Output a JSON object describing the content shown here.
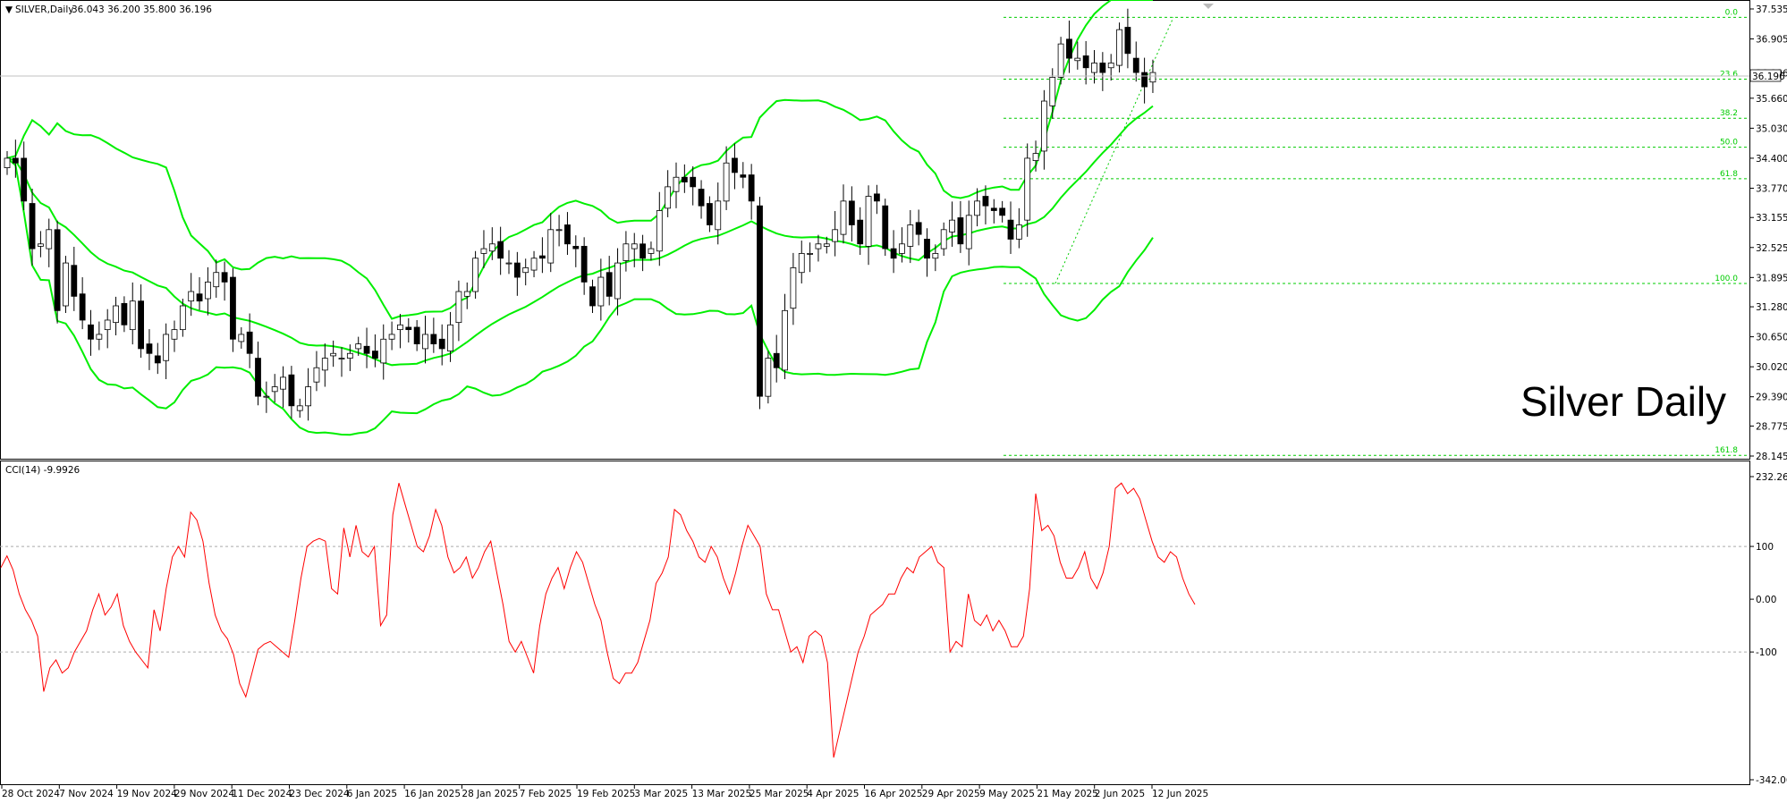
{
  "window": {
    "symbol_header": "SILVER,Daily",
    "ohlc_header": "36.043 36.200 35.800 36.196",
    "current_price_label": "36.196",
    "watermark": "Silver Daily",
    "cci_header": "CCI(14) -9.9926"
  },
  "colors": {
    "candle_body_bull": "#ffffff",
    "candle_body_bear": "#000000",
    "candle_outline": "#000000",
    "bollinger": "#00ee00",
    "fibonacci": "#00cc00",
    "cci_line": "#ff0000",
    "grid_levels": "#aaaaaa",
    "background": "#ffffff"
  },
  "chart_data": [
    {
      "type": "candlestick",
      "title": "SILVER,Daily",
      "ylim": [
        28.145,
        37.535
      ],
      "price_ticks": [
        "37.535",
        "36.905",
        "36.196",
        "35.660",
        "35.030",
        "34.400",
        "33.770",
        "33.155",
        "32.525",
        "31.895",
        "31.280",
        "30.650",
        "30.020",
        "29.390",
        "28.775",
        "28.145"
      ],
      "date_labels": [
        "28 Oct 2024",
        "7 Nov 2024",
        "19 Nov 2024",
        "29 Nov 2024",
        "11 Dec 2024",
        "23 Dec 2024",
        "6 Jan 2025",
        "16 Jan 2025",
        "28 Jan 2025",
        "7 Feb 2025",
        "19 Feb 2025",
        "3 Mar 2025",
        "13 Mar 2025",
        "25 Mar 2025",
        "4 Apr 2025",
        "16 Apr 2025",
        "29 Apr 2025",
        "9 May 2025",
        "21 May 2025",
        "2 Jun 2025",
        "12 Jun 2025"
      ],
      "closes": [
        34.4,
        34.3,
        33.5,
        32.5,
        32.6,
        32.9,
        31.2,
        32.2,
        31.5,
        31.0,
        30.6,
        30.7,
        31.0,
        31.3,
        30.9,
        31.4,
        30.4,
        30.3,
        30.1,
        30.7,
        30.8,
        31.3,
        31.6,
        31.4,
        31.8,
        32.0,
        31.8,
        30.6,
        30.7,
        30.3,
        29.4,
        29.4,
        29.6,
        29.8,
        29.2,
        29.2,
        29.6,
        30.0,
        30.2,
        30.3,
        30.2,
        30.3,
        30.5,
        30.3,
        30.2,
        30.6,
        30.7,
        30.9,
        30.8,
        30.5,
        30.7,
        30.5,
        30.4,
        30.9,
        31.6,
        31.6,
        32.3,
        32.5,
        32.6,
        32.3,
        32.2,
        31.9,
        32.1,
        32.3,
        32.3,
        32.9,
        32.9,
        32.6,
        32.5,
        31.8,
        31.3,
        31.9,
        31.5,
        32.2,
        32.6,
        32.6,
        32.3,
        32.5,
        33.3,
        33.8,
        34.0,
        33.9,
        33.8,
        33.4,
        33.0,
        33.5,
        34.3,
        34.1,
        34.0,
        33.5,
        29.4,
        30.2,
        30.0,
        31.2,
        32.1,
        32.4,
        32.4,
        32.6,
        32.6,
        32.9,
        33.5,
        33.0,
        32.6,
        33.6,
        33.5,
        32.5,
        32.3,
        32.6,
        33.0,
        32.8,
        32.3,
        32.4,
        32.9,
        33.1,
        32.6,
        33.2,
        33.5,
        33.4,
        33.3,
        33.2,
        32.7,
        33.0,
        34.4,
        34.5,
        35.6,
        36.1,
        36.8,
        36.5,
        36.5,
        36.3,
        36.4,
        36.2,
        36.4,
        37.1,
        36.6,
        36.2,
        35.9,
        36.2
      ],
      "fibonacci_levels": [
        {
          "label": "0.0",
          "price": 37.36
        },
        {
          "label": "23.6",
          "price": 36.06
        },
        {
          "label": "38.2",
          "price": 35.24
        },
        {
          "label": "50.0",
          "price": 34.63
        },
        {
          "label": "61.8",
          "price": 33.97
        },
        {
          "label": "100.0",
          "price": 31.77
        },
        {
          "label": "161.8",
          "price": 28.16
        }
      ]
    },
    {
      "type": "line",
      "title": "CCI(14) -9.9926",
      "ylim": [
        -342.065,
        232.2625
      ],
      "ticks": [
        "232.2625",
        "100",
        "0.00",
        "-100",
        "-342.065"
      ],
      "levels": [
        100,
        -100
      ],
      "values": [
        60,
        82,
        55,
        10,
        -20,
        -40,
        -70,
        -175,
        -130,
        -115,
        -140,
        -130,
        -100,
        -80,
        -60,
        -20,
        10,
        -30,
        -15,
        10,
        -50,
        -80,
        -100,
        -115,
        -130,
        -20,
        -60,
        20,
        80,
        100,
        80,
        165,
        150,
        110,
        30,
        -30,
        -60,
        -75,
        -105,
        -160,
        -185,
        -140,
        -95,
        -85,
        -80,
        -90,
        -100,
        -110,
        -40,
        40,
        100,
        110,
        115,
        110,
        20,
        10,
        135,
        80,
        140,
        90,
        80,
        100,
        -50,
        -30,
        160,
        220,
        180,
        140,
        100,
        90,
        120,
        170,
        140,
        80,
        50,
        60,
        80,
        40,
        60,
        90,
        110,
        50,
        -10,
        -80,
        -100,
        -80,
        -110,
        -140,
        -50,
        10,
        40,
        60,
        20,
        60,
        90,
        70,
        30,
        -10,
        -40,
        -100,
        -150,
        -160,
        -140,
        -140,
        -120,
        -80,
        -40,
        30,
        50,
        80,
        170,
        160,
        130,
        110,
        80,
        70,
        100,
        80,
        40,
        10,
        50,
        100,
        140,
        120,
        100,
        10,
        -20,
        -20,
        -60,
        -100,
        -90,
        -120,
        -70,
        -60,
        -70,
        -120,
        -300,
        -250,
        -200,
        -150,
        -100,
        -70,
        -30,
        -20,
        -10,
        10,
        10,
        40,
        60,
        50,
        80,
        90,
        100,
        70,
        60,
        -100,
        -80,
        -90,
        10,
        -40,
        -50,
        -30,
        -60,
        -40,
        -60,
        -90,
        -90,
        -70,
        20,
        200,
        130,
        140,
        120,
        70,
        40,
        40,
        60,
        90,
        40,
        20,
        50,
        100,
        210,
        220,
        200,
        210,
        190,
        150,
        110,
        80,
        70,
        90,
        80,
        40,
        10,
        -10
      ]
    }
  ]
}
